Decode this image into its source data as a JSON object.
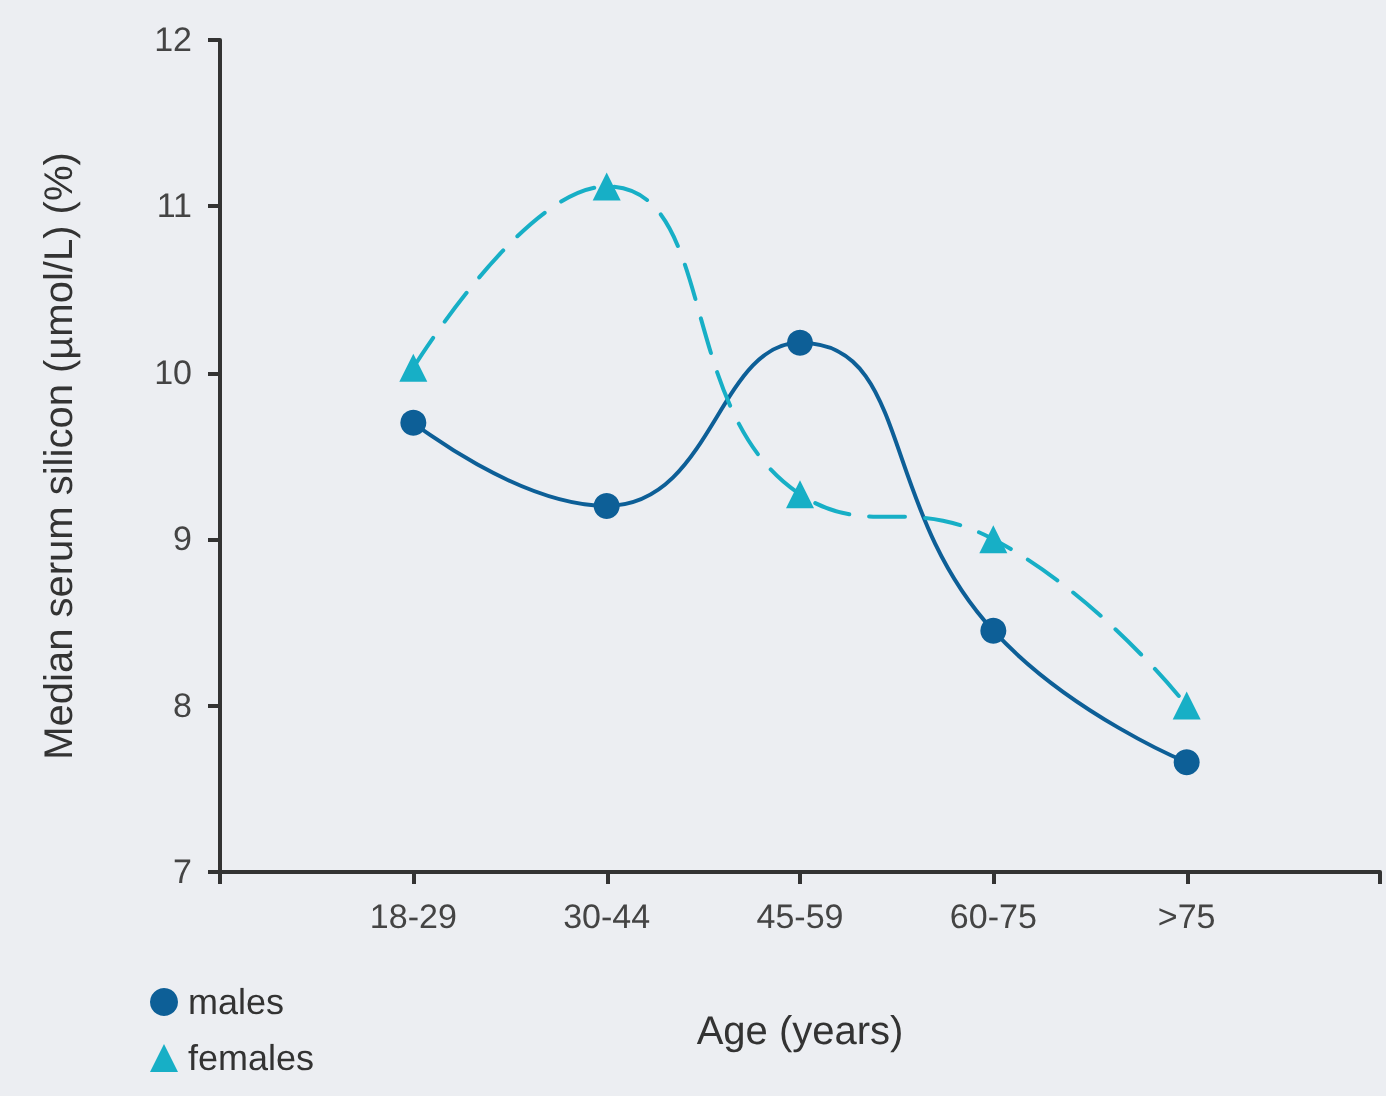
{
  "chart_data": {
    "type": "line",
    "xlabel": "Age (years)",
    "ylabel": "Median serum silicon (µmol/L) (%)",
    "categories": [
      "18-29",
      "30-44",
      "45-59",
      "60-75",
      ">75"
    ],
    "series": [
      {
        "name": "males",
        "color": "#0d5f97",
        "values": [
          9.7,
          9.2,
          10.18,
          8.45,
          7.66
        ],
        "marker": "circle",
        "line_style": "solid"
      },
      {
        "name": "females",
        "color": "#17afc6",
        "values": [
          10.03,
          11.12,
          9.27,
          9.0,
          8.0
        ],
        "marker": "triangle",
        "line_style": "dashed"
      }
    ],
    "ylim": [
      7,
      12
    ],
    "yticks": [
      7,
      8,
      9,
      10,
      11,
      12
    ],
    "grid": false,
    "legend": "bottom left"
  }
}
